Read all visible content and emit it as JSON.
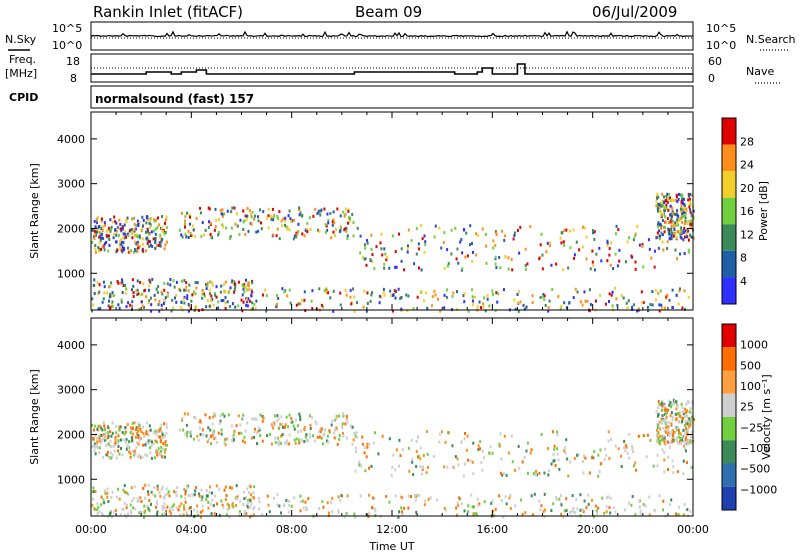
{
  "header": {
    "station": "Rankin Inlet (fitACF)",
    "beam": "Beam 09",
    "date": "06/Jul/2009"
  },
  "strip_nsky": {
    "left_label": "N.Sky",
    "right_label": "N.Search",
    "left_ticks": [
      "10^5",
      "10^0"
    ],
    "right_ticks": [
      "10^5",
      "10^0"
    ]
  },
  "strip_freq": {
    "left_label": "Freq.",
    "left_unit": "[MHz]",
    "left_ticks": [
      "18",
      "8"
    ],
    "right_label": "Nave",
    "right_ticks": [
      "60",
      "0"
    ]
  },
  "cpid": {
    "label": "CPID",
    "program": "normalsound (fast) 157"
  },
  "chart_data": [
    {
      "type": "heatmap",
      "panel": "power",
      "ylabel": "Slant Range [km]",
      "y_ticks": [
        1000,
        2000,
        3000,
        4000
      ],
      "ylim": [
        180,
        4600
      ],
      "xlim": [
        0,
        24
      ],
      "x_ticks": [
        "00:00",
        "04:00",
        "08:00",
        "12:00",
        "16:00",
        "20:00",
        "00:00"
      ],
      "colorbar": {
        "label": "Power [dB]",
        "ticks": [
          "28",
          "24",
          "20",
          "16",
          "12",
          "8",
          "4"
        ],
        "colors": [
          "#2f2fff",
          "#1f5fa8",
          "#3a8a5a",
          "#6fcf3f",
          "#f2cf2a",
          "#ff8f1a",
          "#e00000"
        ]
      }
    },
    {
      "type": "heatmap",
      "panel": "velocity",
      "ylabel": "Slant Range [km]",
      "y_ticks": [
        1000,
        2000,
        3000,
        4000
      ],
      "ylim": [
        180,
        4600
      ],
      "xlim": [
        0,
        24
      ],
      "x_ticks": [
        "00:00",
        "04:00",
        "08:00",
        "12:00",
        "16:00",
        "20:00",
        "00:00"
      ],
      "xlabel": "Time UT",
      "colorbar": {
        "label": "Velocity [m s⁻¹]",
        "ticks": [
          "1000",
          "500",
          "100",
          "25",
          "−25",
          "−100",
          "−500",
          "−1000"
        ],
        "colors": [
          "#1f3fb0",
          "#2f6fb0",
          "#3a8a5a",
          "#6fcf3f",
          "#cfcfcf",
          "#ffa040",
          "#ff6f00",
          "#e00000"
        ]
      }
    }
  ]
}
